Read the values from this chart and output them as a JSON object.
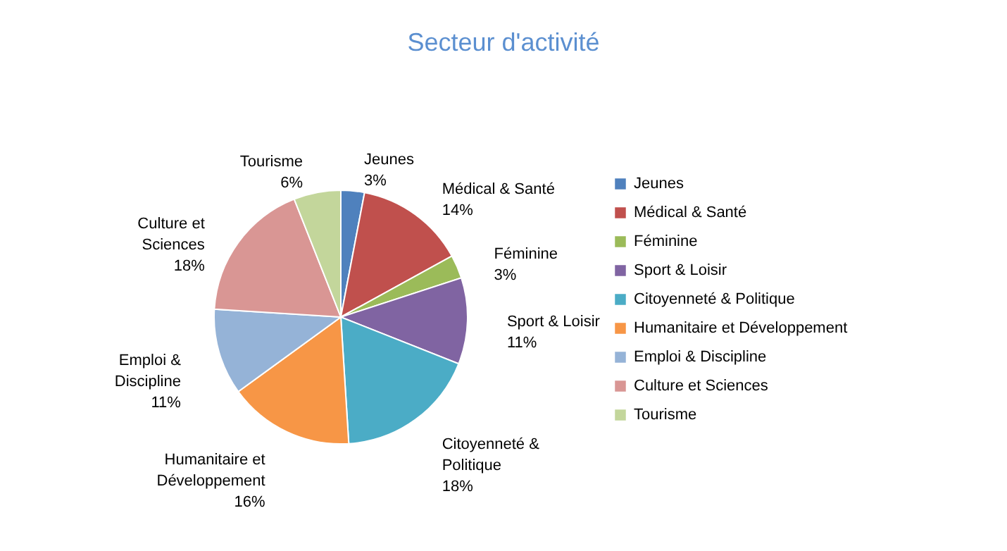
{
  "chart_data": {
    "type": "pie",
    "title": "Secteur d'activité",
    "categories": [
      "Jeunes",
      "Médical & Santé",
      "Féminine",
      "Sport & Loisir",
      "Citoyenneté & Politique",
      "Humanitaire et Développement",
      "Emploi & Discipline",
      "Culture et Sciences",
      "Tourisme"
    ],
    "values": [
      3,
      14,
      3,
      11,
      18,
      16,
      11,
      18,
      6
    ],
    "colors": [
      "#4f81bd",
      "#c0504d",
      "#9bbb59",
      "#8064a2",
      "#4bacc6",
      "#f79646",
      "#95b3d7",
      "#d99694",
      "#c3d69b"
    ],
    "value_labels": [
      "3%",
      "14%",
      "3%",
      "11%",
      "18%",
      "16%",
      "11%",
      "18%",
      "6%"
    ],
    "legend": "right"
  }
}
